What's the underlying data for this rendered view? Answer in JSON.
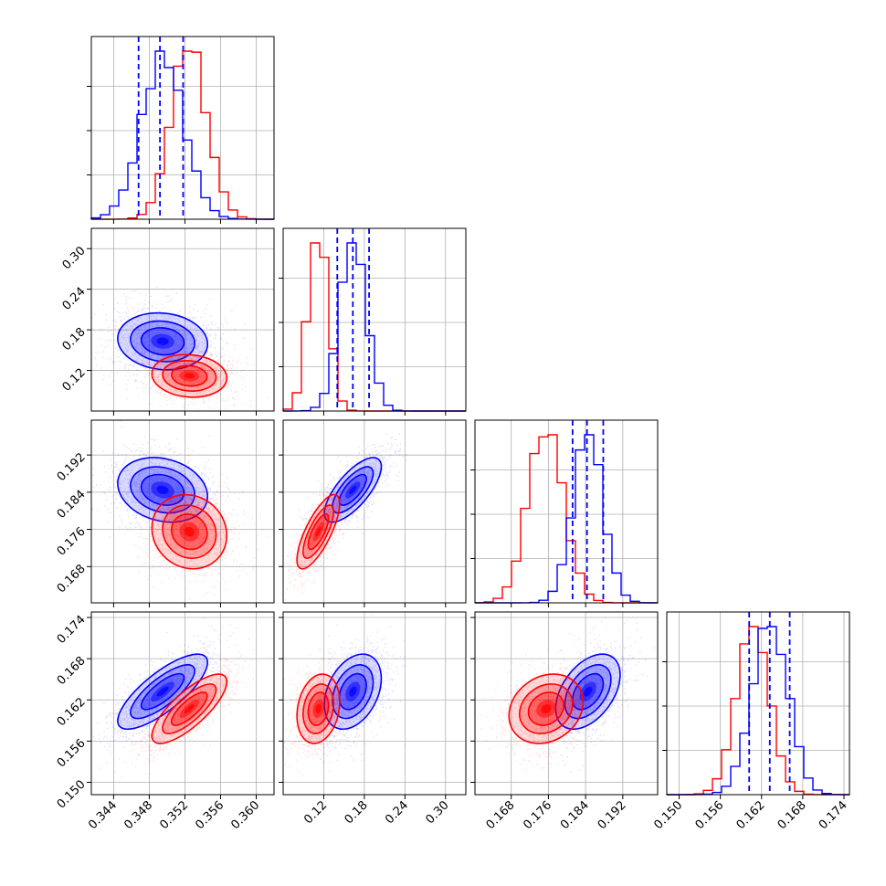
{
  "chart_data": {
    "type": "corner",
    "parameters": [
      {
        "range": [
          0.3415,
          0.362
        ],
        "ticks": [
          "0.344",
          "0.348",
          "0.352",
          "0.356",
          "0.360"
        ],
        "red": {
          "mean": 0.3525,
          "sd": 0.002
        },
        "blue": {
          "mean": 0.3495,
          "sd": 0.0024
        },
        "quantiles": [
          0.3468,
          0.3492,
          0.3518
        ]
      },
      {
        "range": [
          0.06,
          0.33
        ],
        "ticks": [
          "0.12",
          "0.18",
          "0.24",
          "0.30"
        ],
        "red": {
          "mean": 0.112,
          "sd": 0.015
        },
        "blue": {
          "mean": 0.163,
          "sd": 0.02
        },
        "quantiles": [
          0.14,
          0.163,
          0.187
        ]
      },
      {
        "range": [
          0.1602,
          0.1995
        ],
        "ticks": [
          "0.168",
          "0.176",
          "0.184",
          "0.192"
        ],
        "red": {
          "mean": 0.1755,
          "sd": 0.0038
        },
        "blue": {
          "mean": 0.1845,
          "sd": 0.0033
        },
        "quantiles": [
          0.1812,
          0.1843,
          0.1878
        ]
      },
      {
        "range": [
          0.1482,
          0.1748
        ],
        "ticks": [
          "0.150",
          "0.156",
          "0.162",
          "0.168",
          "0.174"
        ],
        "red": {
          "mean": 0.1607,
          "sd": 0.0024
        },
        "blue": {
          "mean": 0.1632,
          "sd": 0.0026
        },
        "quantiles": [
          0.1602,
          0.1632,
          0.1661
        ]
      }
    ],
    "correlations": {
      "blue": {
        "0-1": -0.1,
        "0-2": -0.2,
        "0-3": 0.78,
        "1-2": 0.72,
        "1-3": 0.35,
        "2-3": 0.45
      },
      "red": {
        "0-1": -0.1,
        "0-2": -0.1,
        "0-3": 0.78,
        "1-2": 0.75,
        "1-3": 0.2,
        "2-3": 0.2
      }
    },
    "series": [
      {
        "color": "#ff0000"
      },
      {
        "color": "#0000ff"
      }
    ],
    "quantile_line_color": "#0000ff",
    "grid": true
  }
}
